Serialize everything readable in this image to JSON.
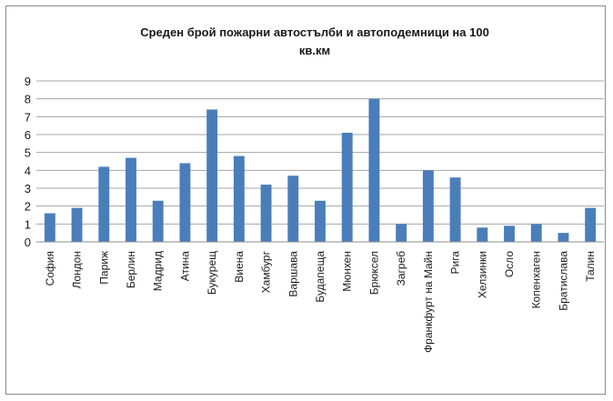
{
  "chart_data": {
    "type": "bar",
    "title_lines": [
      "Среден брой пожарни автостълби и автоподемници на 100",
      "кв.км"
    ],
    "categories": [
      "София",
      "Лондон",
      "Париж",
      "Берлин",
      "Мадрид",
      "Атина",
      "Букурещ",
      "Виена",
      "Хамбург",
      "Варшава",
      "Будапеща",
      "Мюнхен",
      "Брюксел",
      "Загреб",
      "Франкфурт на Майн",
      "Рига",
      "Хелзинки",
      "Осло",
      "Копенхаген",
      "Братислава",
      "Талин"
    ],
    "values": [
      1.6,
      1.9,
      4.2,
      4.7,
      2.3,
      4.4,
      7.4,
      4.8,
      3.2,
      3.7,
      2.3,
      6.1,
      8.0,
      1.0,
      4.0,
      3.6,
      0.8,
      0.9,
      1.0,
      0.5,
      1.9
    ],
    "ylim": [
      0,
      9
    ],
    "yticks": [
      0,
      1,
      2,
      3,
      4,
      5,
      6,
      7,
      8,
      9
    ],
    "grid": true,
    "bar_color": "#4a7ebb"
  }
}
